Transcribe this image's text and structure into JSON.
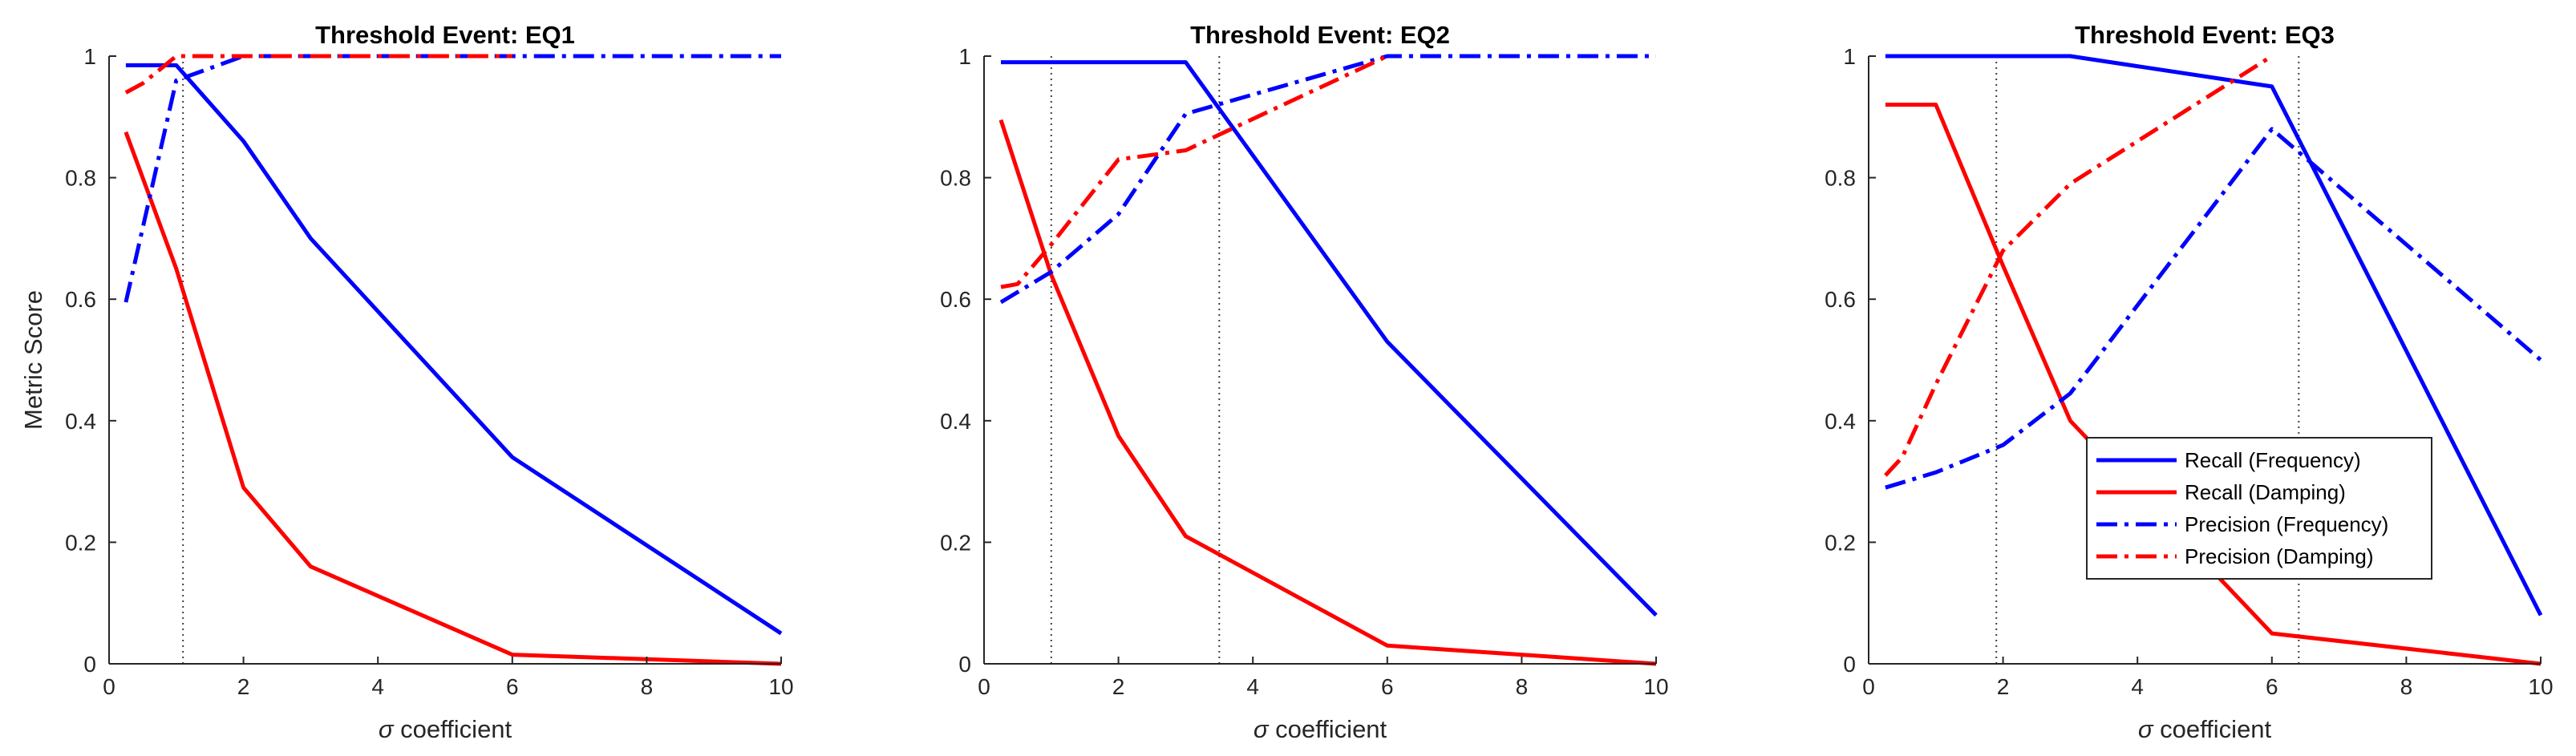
{
  "chart_data": [
    {
      "type": "line",
      "title": "Threshold Event: EQ1",
      "xlabel_symbol": "σ",
      "xlabel": " coefficient",
      "ylabel": "Metric Score",
      "xlim": [
        0,
        10
      ],
      "ylim": [
        0,
        1
      ],
      "xticks": [
        0,
        2,
        4,
        6,
        8,
        10
      ],
      "xtick_labels": [
        "0",
        "2",
        "4",
        "6",
        "8",
        "10"
      ],
      "yticks": [
        0,
        0.2,
        0.4,
        0.6,
        0.8,
        1
      ],
      "ytick_labels": [
        "0",
        "0.2",
        "0.4",
        "0.6",
        "0.8",
        "1"
      ],
      "vlines": [
        1.1
      ],
      "series": [
        {
          "name": "Recall (Frequency)",
          "color": "#0000ff",
          "style": "solid",
          "x": [
            0.25,
            1,
            2,
            3,
            6,
            10
          ],
          "values": [
            0.985,
            0.985,
            0.86,
            0.7,
            0.34,
            0.05
          ]
        },
        {
          "name": "Recall (Damping)",
          "color": "#ff0000",
          "style": "solid",
          "x": [
            0.25,
            1,
            2,
            3,
            6,
            10
          ],
          "values": [
            0.875,
            0.65,
            0.29,
            0.16,
            0.015,
            0.0
          ]
        },
        {
          "name": "Precision (Frequency)",
          "color": "#0000ff",
          "style": "dashdot",
          "x": [
            0.25,
            1,
            2,
            3,
            6,
            10
          ],
          "values": [
            0.595,
            0.96,
            1.0,
            1.0,
            1.0,
            1.0
          ]
        },
        {
          "name": "Precision (Damping)",
          "color": "#ff0000",
          "style": "dashdot",
          "x": [
            0.25,
            0.5,
            1,
            2,
            3,
            6
          ],
          "values": [
            0.94,
            0.955,
            1.0,
            1.0,
            1.0,
            1.0
          ]
        }
      ]
    },
    {
      "type": "line",
      "title": "Threshold Event: EQ2",
      "xlabel_symbol": "σ",
      "xlabel": " coefficient",
      "ylabel": "",
      "xlim": [
        0,
        10
      ],
      "ylim": [
        0,
        1
      ],
      "xticks": [
        0,
        2,
        4,
        6,
        8,
        10
      ],
      "xtick_labels": [
        "0",
        "2",
        "4",
        "6",
        "8",
        "10"
      ],
      "yticks": [
        0,
        0.2,
        0.4,
        0.6,
        0.8,
        1
      ],
      "ytick_labels": [
        "0",
        "0.2",
        "0.4",
        "0.6",
        "0.8",
        "1"
      ],
      "vlines": [
        1.0,
        3.5
      ],
      "series": [
        {
          "name": "Recall (Frequency)",
          "color": "#0000ff",
          "style": "solid",
          "x": [
            0.25,
            1,
            2,
            3,
            6,
            10
          ],
          "values": [
            0.99,
            0.99,
            0.99,
            0.99,
            0.53,
            0.08
          ]
        },
        {
          "name": "Recall (Damping)",
          "color": "#ff0000",
          "style": "solid",
          "x": [
            0.25,
            1,
            2,
            3,
            6,
            10
          ],
          "values": [
            0.895,
            0.64,
            0.375,
            0.21,
            0.03,
            0.0
          ]
        },
        {
          "name": "Precision (Frequency)",
          "color": "#0000ff",
          "style": "dashdot",
          "x": [
            0.25,
            1,
            2,
            3,
            6,
            10
          ],
          "values": [
            0.595,
            0.645,
            0.74,
            0.905,
            1.0,
            1.0
          ]
        },
        {
          "name": "Precision (Damping)",
          "color": "#ff0000",
          "style": "dashdot",
          "x": [
            0.25,
            0.5,
            1,
            2,
            3,
            6
          ],
          "values": [
            0.62,
            0.625,
            0.69,
            0.83,
            0.845,
            1.0
          ]
        }
      ]
    },
    {
      "type": "line",
      "title": "Threshold Event: EQ3",
      "xlabel_symbol": "σ",
      "xlabel": " coefficient",
      "ylabel": "",
      "xlim": [
        0,
        10
      ],
      "ylim": [
        0,
        1
      ],
      "xticks": [
        0,
        2,
        4,
        6,
        8,
        10
      ],
      "xtick_labels": [
        "0",
        "2",
        "4",
        "6",
        "8",
        "10"
      ],
      "yticks": [
        0,
        0.2,
        0.4,
        0.6,
        0.8,
        1
      ],
      "ytick_labels": [
        "0",
        "0.2",
        "0.4",
        "0.6",
        "0.8",
        "1"
      ],
      "vlines": [
        1.9,
        6.4
      ],
      "legend_location": "right-middle",
      "series": [
        {
          "name": "Recall (Frequency)",
          "color": "#0000ff",
          "style": "solid",
          "x": [
            0.25,
            1,
            2,
            3,
            6,
            10
          ],
          "values": [
            1.0,
            1.0,
            1.0,
            1.0,
            0.95,
            0.08
          ]
        },
        {
          "name": "Recall (Damping)",
          "color": "#ff0000",
          "style": "solid",
          "x": [
            0.25,
            1,
            2,
            3,
            6,
            10
          ],
          "values": [
            0.92,
            0.92,
            0.655,
            0.4,
            0.05,
            0.0
          ]
        },
        {
          "name": "Precision (Frequency)",
          "color": "#0000ff",
          "style": "dashdot",
          "x": [
            0.25,
            1,
            2,
            3,
            6,
            10
          ],
          "values": [
            0.29,
            0.315,
            0.36,
            0.445,
            0.88,
            0.5
          ]
        },
        {
          "name": "Precision (Damping)",
          "color": "#ff0000",
          "style": "dashdot",
          "x": [
            0.25,
            0.5,
            1,
            2,
            3,
            6
          ],
          "values": [
            0.31,
            0.34,
            0.46,
            0.68,
            0.79,
            1.0
          ]
        }
      ]
    }
  ],
  "legend": {
    "items": [
      {
        "label": "Recall (Frequency)",
        "color": "#0000ff",
        "style": "solid"
      },
      {
        "label": "Recall (Damping)",
        "color": "#ff0000",
        "style": "solid"
      },
      {
        "label": "Precision (Frequency)",
        "color": "#0000ff",
        "style": "dashdot"
      },
      {
        "label": "Precision (Damping)",
        "color": "#ff0000",
        "style": "dashdot"
      }
    ]
  }
}
